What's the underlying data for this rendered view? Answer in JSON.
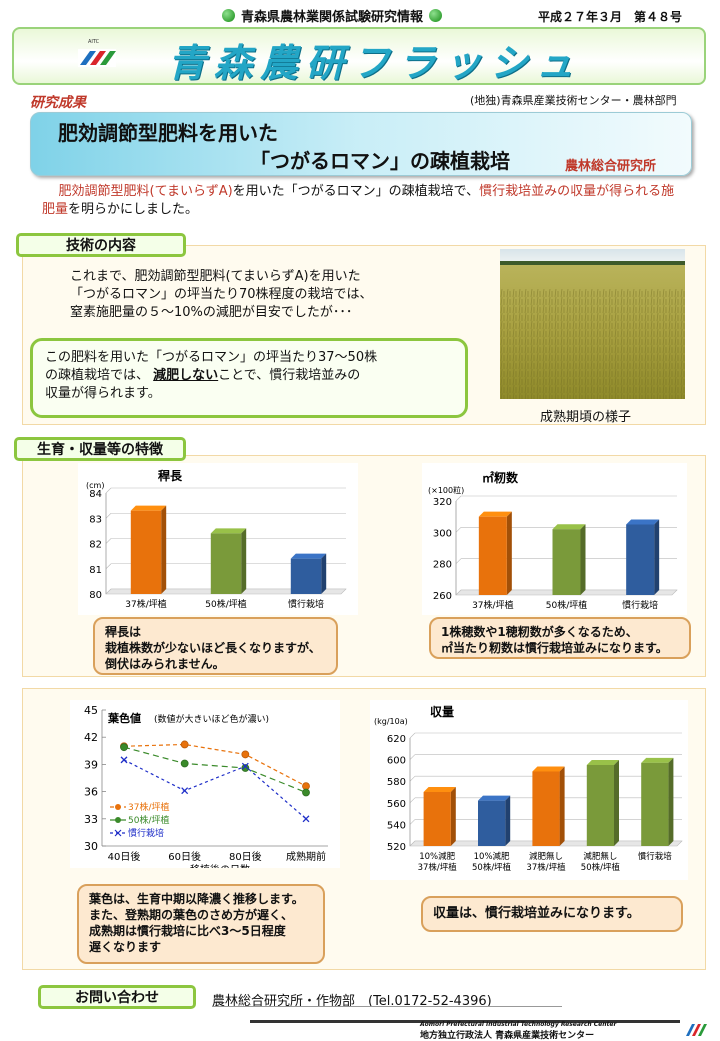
{
  "header": {
    "topline": "青森県農林業関係試験研究情報",
    "issue": "平成２７年３月　第４８号",
    "banner_title": "青森農研フラッシュ",
    "logo_text": "AITC",
    "category": "研究成果",
    "org": "(地独)青森県産業技術センター・農林部門"
  },
  "title": {
    "line1": "肥効調節型肥料を用いた",
    "line2": "「つがるロマン」の疎植栽培",
    "org": "農林総合研究所"
  },
  "intro": {
    "part1": "肥効調節型肥料(てまいらずA)",
    "part2": "を用いた「つがるロマン」の疎植栽培で、",
    "part3": "慣行栽培並みの収量が得られる施肥量",
    "part4": "を明らかにしました。"
  },
  "section1": {
    "label": "技術の内容",
    "lines": [
      "これまで、肥効調節型肥料(てまいらずA)を用いた",
      "「つがるロマン」の坪当たり70株程度の栽培では、",
      "窒素施肥量の５～10%の減肥が目安でしたが･･･"
    ],
    "box_line1": "この肥料を用いた「つがるロマン」の坪当たり37～50株",
    "box_line2a": "の疎植栽培では、",
    "box_emph": "減肥しない",
    "box_line2b": "ことで、慣行栽培並みの",
    "box_line3": "収量が得られます。",
    "photo_caption": "成熟期頃の様子"
  },
  "section2": {
    "label": "生育・収量等の特徴",
    "note1": [
      "稈長は",
      "栽植株数が少ないほど長くなりますが、",
      "倒伏はみられません。"
    ],
    "note2": [
      "1株穂数や1穂籾数が多くなるため、",
      "㎡当たり籾数は慣行栽培並みになります。"
    ],
    "note3": [
      "葉色は、生育中期以降濃く推移します。",
      "また、登熟期の葉色のさめ方が遅く、",
      "成熟期は慣行栽培に比べ3～5日程度",
      "遅くなります"
    ],
    "note4": "収量は、慣行栽培並みになります。"
  },
  "contact": {
    "label": "お問い合わせ",
    "text": "農林総合研究所・作物部　(Tel.0172-52-4396)"
  },
  "footer": {
    "en": "Aomori Prefectural Industrial Technology Research Center",
    "jp": "地方独立行政法人 青森県産業技術センター"
  },
  "colors": {
    "orange": "#e8720c",
    "green": "#7a9a3a",
    "blue": "#2f5d9e",
    "accent": "#8cc63f"
  },
  "chart_data": [
    {
      "type": "bar",
      "title": "稈長",
      "unit": "(cm)",
      "categories": [
        "37株/坪植",
        "50株/坪植",
        "慣行栽培"
      ],
      "values": [
        83.3,
        82.4,
        81.4
      ],
      "colors": [
        "#e8720c",
        "#7a9a3a",
        "#2f5d9e"
      ],
      "ylim": [
        80,
        84
      ],
      "ticks": [
        80,
        81,
        82,
        83,
        84
      ]
    },
    {
      "type": "bar",
      "title": "㎡籾数",
      "unit": "(×100粒)",
      "categories": [
        "37株/坪植",
        "50株/坪植",
        "慣行栽培"
      ],
      "values": [
        310,
        302,
        305
      ],
      "colors": [
        "#e8720c",
        "#7a9a3a",
        "#2f5d9e"
      ],
      "ylim": [
        260,
        320
      ],
      "ticks": [
        260,
        280,
        300,
        320
      ]
    },
    {
      "type": "line",
      "title": "葉色値",
      "subtitle": "(数値が大きいほど色が濃い)",
      "xlabel": "移植後の日数",
      "categories": [
        "40日後",
        "60日後",
        "80日後",
        "成熟期前"
      ],
      "ylim": [
        30,
        45
      ],
      "ticks": [
        30,
        33,
        36,
        39,
        42,
        45
      ],
      "series": [
        {
          "name": "37株/坪植",
          "values": [
            41.0,
            41.2,
            40.1,
            36.6
          ],
          "color": "#e8720c",
          "marker": "circle-open"
        },
        {
          "name": "50株/坪植",
          "values": [
            40.9,
            39.1,
            38.6,
            35.9
          ],
          "color": "#3a8a2a",
          "marker": "circle"
        },
        {
          "name": "慣行栽培",
          "values": [
            39.5,
            36.1,
            38.8,
            33.0
          ],
          "color": "#1e2ec8",
          "marker": "x"
        }
      ]
    },
    {
      "type": "bar",
      "title": "収量",
      "unit": "(kg/10a)",
      "categories": [
        [
          "10%減肥",
          "37株/坪植"
        ],
        [
          "10%減肥",
          "50株/坪植"
        ],
        [
          "減肥無し",
          "37株/坪植"
        ],
        [
          "減肥無し",
          "50株/坪植"
        ],
        [
          "慣行栽培",
          ""
        ]
      ],
      "values": [
        570,
        562,
        589,
        595,
        597
      ],
      "colors": [
        "#e8720c",
        "#2f5d9e",
        "#e8720c",
        "#7a9a3a",
        "#7a9a3a"
      ],
      "ylim": [
        520,
        620
      ],
      "ticks": [
        520,
        540,
        560,
        580,
        600,
        620
      ]
    }
  ]
}
